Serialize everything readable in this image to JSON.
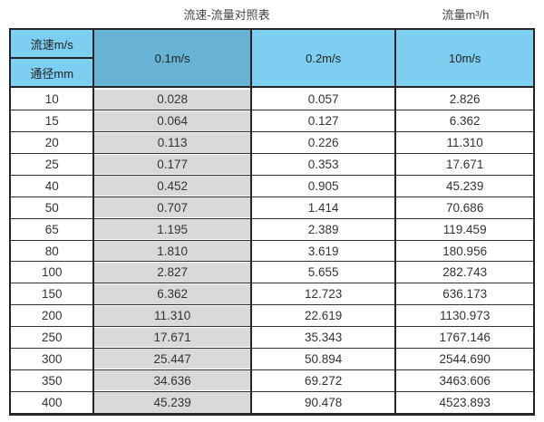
{
  "page": {
    "title": "流速-流量对照表",
    "unit_label": "流量m³/h"
  },
  "colors": {
    "header_light_blue": "#7dcef0",
    "header_dark_blue": "#66b3d5",
    "highlight_column_gray": "#d9d9d9",
    "border_dark": "#262626"
  },
  "table": {
    "corner_top": "流速m/s",
    "corner_bottom": "通径mm",
    "col_headers": [
      "0.1m/s",
      "0.2m/s",
      "10m/s"
    ],
    "rows": [
      {
        "dn": "10",
        "v1": "0.028",
        "v2": "0.057",
        "v3": "2.826"
      },
      {
        "dn": "15",
        "v1": "0.064",
        "v2": "0.127",
        "v3": "6.362"
      },
      {
        "dn": "20",
        "v1": "0.113",
        "v2": "0.226",
        "v3": "11.310"
      },
      {
        "dn": "25",
        "v1": "0.177",
        "v2": "0.353",
        "v3": "17.671"
      },
      {
        "dn": "40",
        "v1": "0.452",
        "v2": "0.905",
        "v3": "45.239"
      },
      {
        "dn": "50",
        "v1": "0.707",
        "v2": "1.414",
        "v3": "70.686"
      },
      {
        "dn": "65",
        "v1": "1.195",
        "v2": "2.389",
        "v3": "119.459"
      },
      {
        "dn": "80",
        "v1": "1.810",
        "v2": "3.619",
        "v3": "180.956"
      },
      {
        "dn": "100",
        "v1": "2.827",
        "v2": "5.655",
        "v3": "282.743"
      },
      {
        "dn": "150",
        "v1": "6.362",
        "v2": "12.723",
        "v3": "636.173"
      },
      {
        "dn": "200",
        "v1": "11.310",
        "v2": "22.619",
        "v3": "1130.973"
      },
      {
        "dn": "250",
        "v1": "17.671",
        "v2": "35.343",
        "v3": "1767.146"
      },
      {
        "dn": "300",
        "v1": "25.447",
        "v2": "50.894",
        "v3": "2544.690"
      },
      {
        "dn": "350",
        "v1": "34.636",
        "v2": "69.272",
        "v3": "3463.606"
      },
      {
        "dn": "400",
        "v1": "45.239",
        "v2": "90.478",
        "v3": "4523.893"
      }
    ]
  },
  "chart_data": {
    "type": "table",
    "title": "流速-流量对照表",
    "unit_label": "流量m³/h",
    "corner_header_top": "流速m/s",
    "corner_header_bottom": "通径mm",
    "velocity_columns_mps": [
      0.1,
      0.2,
      10
    ],
    "diameters_mm": [
      10,
      15,
      20,
      25,
      40,
      50,
      65,
      80,
      100,
      150,
      200,
      250,
      300,
      350,
      400
    ],
    "flow_rate_m3h": {
      "0.1m/s": [
        0.028,
        0.064,
        0.113,
        0.177,
        0.452,
        0.707,
        1.195,
        1.81,
        2.827,
        6.362,
        11.31,
        17.671,
        25.447,
        34.636,
        45.239
      ],
      "0.2m/s": [
        0.057,
        0.127,
        0.226,
        0.353,
        0.905,
        1.414,
        2.389,
        3.619,
        5.655,
        12.723,
        22.619,
        35.343,
        50.894,
        69.272,
        90.478
      ],
      "10m/s": [
        2.826,
        6.362,
        11.31,
        17.671,
        45.239,
        70.686,
        119.459,
        180.956,
        282.743,
        636.173,
        1130.973,
        1767.146,
        2544.69,
        3463.606,
        4523.893
      ]
    },
    "layout": {
      "highlighted_column": "0.1m/s",
      "grid": true
    }
  }
}
